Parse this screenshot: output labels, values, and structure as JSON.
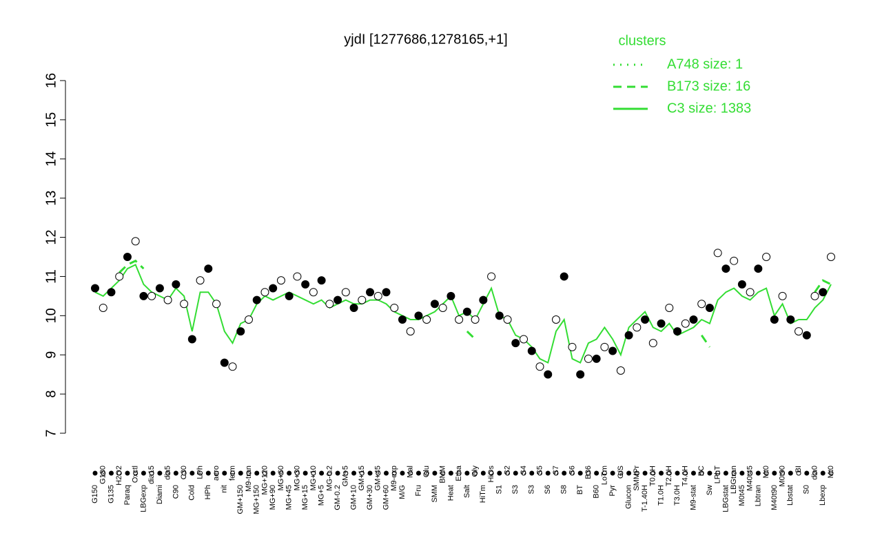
{
  "chart_data": {
    "type": "line",
    "title": "yjdI [1277686,1278165,+1]",
    "legend_title": "clusters",
    "categories": [
      "G150",
      "G180",
      "G135",
      "H2O2",
      "Paraq",
      "Oxctl",
      "LBGexp",
      "dia15",
      "Diami",
      "dia5",
      "C90",
      "C30",
      "Cold",
      "LPh",
      "HPh",
      "aero",
      "nit",
      "ferm",
      "GM+150",
      "M9-tran",
      "MG+150",
      "MG+120",
      "MG+90",
      "MG+60",
      "MG+45",
      "MG+30",
      "MG+15",
      "MG+10",
      "MG+5",
      "MG-0.2",
      "GM-0.2",
      "GM+5",
      "GM+10",
      "GM+15",
      "GM+30",
      "GM+45",
      "GM+60",
      "M9-exp",
      "M/G",
      "Mal",
      "Fru",
      "Glu",
      "SMM",
      "BMM",
      "Heat",
      "Etha",
      "Salt",
      "Gly",
      "HiTm",
      "HiOs",
      "S1",
      "S2",
      "S3",
      "S4",
      "S3",
      "S5",
      "S6",
      "S7",
      "S8",
      "S6",
      "BT",
      "B36",
      "B60",
      "LoTm",
      "Pyr",
      "G/S",
      "Glucon",
      "SMMPr",
      "T-1.40H",
      "T0.0H",
      "T1.0H",
      "T2.0H",
      "T3.0H",
      "T4.0H",
      "M9-stat",
      "BC",
      "Sw",
      "LPhT",
      "LBGstat",
      "LBGtran",
      "M0t45",
      "M40t45",
      "Lbtran",
      "Mt0",
      "M40t90",
      "M0t90",
      "Lbstat",
      "BI",
      "S0",
      "dia0",
      "Lbexp",
      "Mt0"
    ],
    "points": [
      10.7,
      10.2,
      10.6,
      11.0,
      11.5,
      11.9,
      10.5,
      10.5,
      10.7,
      10.4,
      10.8,
      10.3,
      9.4,
      10.9,
      11.2,
      10.3,
      8.8,
      8.7,
      9.6,
      9.9,
      10.4,
      10.6,
      10.7,
      10.9,
      10.5,
      11.0,
      10.8,
      10.6,
      10.9,
      10.3,
      10.4,
      10.6,
      10.2,
      10.4,
      10.6,
      10.5,
      10.6,
      10.2,
      9.9,
      9.6,
      10.0,
      9.9,
      10.3,
      10.2,
      10.5,
      9.9,
      10.1,
      9.9,
      10.4,
      11.0,
      10.0,
      9.9,
      9.3,
      9.4,
      9.1,
      8.7,
      8.5,
      9.9,
      11.0,
      9.2,
      8.5,
      8.9,
      8.9,
      9.2,
      9.1,
      8.6,
      9.5,
      9.7,
      9.9,
      9.3,
      9.8,
      10.2,
      9.6,
      9.8,
      9.9,
      10.3,
      10.2,
      11.6,
      11.2,
      11.4,
      10.8,
      10.6,
      11.2,
      11.5,
      9.9,
      10.5,
      9.9,
      9.6,
      9.5,
      10.5,
      10.6,
      11.5
    ],
    "series": [
      {
        "name": "A748 size: 1",
        "color": "#33dd33",
        "style": "dotted",
        "values": [
          null,
          null,
          null,
          null,
          null,
          null,
          null,
          null,
          null,
          null,
          null,
          null,
          null,
          null,
          null,
          null,
          null,
          null,
          null,
          null,
          null,
          null,
          null,
          null,
          null,
          null,
          null,
          null,
          null,
          null,
          null,
          null,
          null,
          null,
          null,
          null,
          null,
          null,
          null,
          null,
          null,
          null,
          null,
          null,
          null,
          null,
          null,
          null,
          null,
          null,
          null,
          null,
          null,
          null,
          null,
          null,
          null,
          null,
          null,
          null,
          null,
          null,
          null,
          null,
          null,
          null,
          null,
          null,
          null,
          null,
          null,
          null,
          null,
          null,
          null,
          null,
          null,
          null,
          null,
          null,
          null,
          null,
          null,
          null,
          null,
          null,
          null,
          null,
          null,
          null,
          null,
          null
        ]
      },
      {
        "name": "B173 size: 16",
        "color": "#33dd33",
        "style": "dashed",
        "values": [
          null,
          null,
          null,
          11.1,
          11.3,
          11.4,
          11.2,
          null,
          null,
          null,
          null,
          null,
          null,
          null,
          null,
          null,
          null,
          null,
          null,
          null,
          null,
          null,
          null,
          null,
          null,
          null,
          null,
          null,
          null,
          null,
          null,
          null,
          null,
          null,
          null,
          null,
          null,
          null,
          null,
          null,
          null,
          null,
          null,
          null,
          null,
          null,
          9.6,
          9.4,
          null,
          null,
          null,
          null,
          null,
          null,
          null,
          null,
          null,
          null,
          null,
          null,
          null,
          null,
          null,
          null,
          null,
          null,
          null,
          null,
          null,
          null,
          null,
          null,
          null,
          null,
          null,
          9.5,
          9.2,
          null,
          null,
          null,
          null,
          null,
          null,
          null,
          null,
          null,
          null,
          null,
          null,
          10.6,
          10.9,
          10.8
        ]
      },
      {
        "name": "C3 size: 1383",
        "color": "#33dd33",
        "style": "solid",
        "values": [
          10.6,
          10.5,
          10.7,
          10.9,
          11.2,
          11.3,
          10.8,
          10.6,
          10.5,
          10.4,
          10.7,
          10.5,
          9.6,
          10.6,
          10.6,
          10.3,
          9.6,
          9.3,
          9.8,
          9.9,
          10.3,
          10.5,
          10.4,
          10.5,
          10.6,
          10.5,
          10.4,
          10.3,
          10.4,
          10.2,
          10.3,
          10.4,
          10.3,
          10.3,
          10.4,
          10.4,
          10.3,
          10.1,
          10.0,
          9.9,
          9.9,
          10.0,
          10.1,
          10.3,
          10.5,
          10.0,
          10.1,
          9.9,
          10.3,
          10.7,
          10.0,
          9.9,
          9.5,
          9.4,
          9.2,
          8.9,
          8.8,
          9.6,
          9.9,
          8.9,
          8.8,
          9.3,
          9.4,
          9.7,
          9.4,
          9.0,
          9.7,
          9.9,
          10.1,
          9.7,
          9.6,
          9.8,
          9.5,
          9.6,
          9.7,
          9.9,
          9.8,
          10.4,
          10.6,
          10.7,
          10.5,
          10.4,
          10.6,
          10.7,
          10.0,
          10.3,
          9.8,
          9.9,
          9.9,
          10.2,
          10.4,
          10.8
        ]
      }
    ],
    "ylim": [
      7,
      16
    ],
    "yticks": [
      7,
      8,
      9,
      10,
      11,
      12,
      13,
      14,
      15,
      16
    ]
  }
}
